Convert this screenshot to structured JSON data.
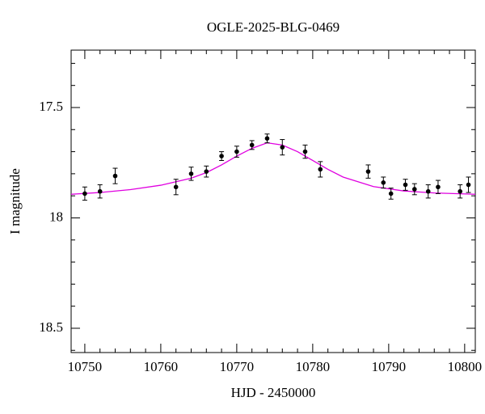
{
  "chart_data": {
    "type": "scatter",
    "title": "OGLE-2025-BLG-0469",
    "xlabel": "HJD - 2450000",
    "ylabel": "I magnitude",
    "xlim": [
      10748.2,
      10801.4
    ],
    "ylim": [
      17.24,
      18.61
    ],
    "y_inverted": true,
    "xticks": [
      10750,
      10760,
      10770,
      10780,
      10790,
      10800
    ],
    "yticks": [
      17.5,
      18,
      18.5
    ],
    "xminorticks": [
      10752,
      10754,
      10756,
      10758,
      10762,
      10764,
      10766,
      10768,
      10772,
      10774,
      10776,
      10778,
      10782,
      10784,
      10786,
      10788,
      10792,
      10794,
      10796,
      10798
    ],
    "yminorticks": [
      17.3,
      17.4,
      17.6,
      17.7,
      17.8,
      17.9,
      18.1,
      18.2,
      18.3,
      18.4,
      18.6
    ],
    "series": [
      {
        "type": "line",
        "color": "#e000e0",
        "x": [
          10748.2,
          10752,
          10756,
          10760,
          10764,
          10766,
          10768,
          10770,
          10772,
          10774,
          10776,
          10778,
          10780,
          10782,
          10784,
          10788,
          10792,
          10796,
          10801.4
        ],
        "values": [
          17.893,
          17.885,
          17.872,
          17.852,
          17.82,
          17.795,
          17.76,
          17.72,
          17.685,
          17.66,
          17.67,
          17.7,
          17.74,
          17.78,
          17.815,
          17.858,
          17.878,
          17.887,
          17.893
        ]
      },
      {
        "type": "scatter",
        "color": "#000000",
        "x": [
          10750,
          10752,
          10754,
          10762,
          10764,
          10766,
          10768,
          10770,
          10772,
          10774,
          10776,
          10779,
          10781,
          10787.3,
          10789.3,
          10790.3,
          10792.2,
          10793.4,
          10795.2,
          10796.5,
          10799.4,
          10800.5
        ],
        "values": [
          17.89,
          17.88,
          17.81,
          17.86,
          17.8,
          17.79,
          17.72,
          17.7,
          17.67,
          17.64,
          17.68,
          17.7,
          17.78,
          17.79,
          17.84,
          17.89,
          17.85,
          17.87,
          17.88,
          17.86,
          17.88,
          17.85
        ],
        "errors": [
          0.03,
          0.03,
          0.035,
          0.035,
          0.03,
          0.025,
          0.02,
          0.025,
          0.02,
          0.02,
          0.035,
          0.03,
          0.035,
          0.03,
          0.025,
          0.025,
          0.025,
          0.025,
          0.03,
          0.03,
          0.03,
          0.035
        ]
      }
    ]
  }
}
